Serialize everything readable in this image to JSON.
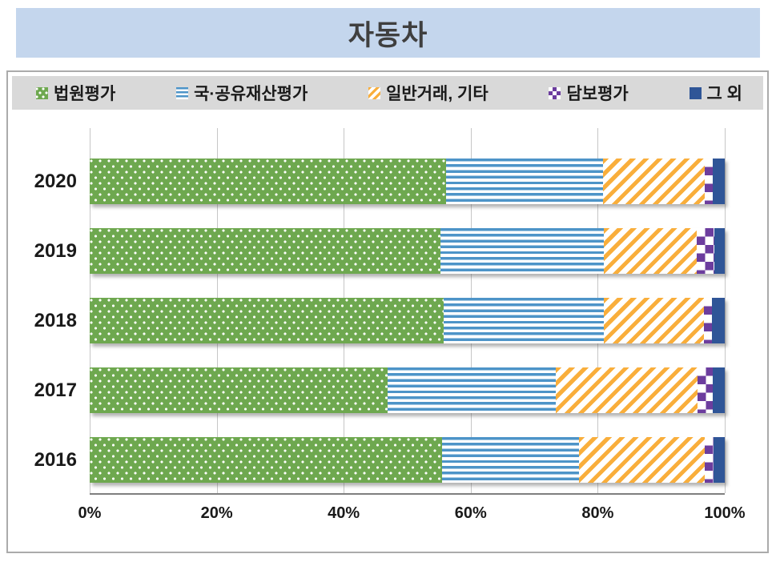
{
  "title": "자동차",
  "chart_data": {
    "type": "bar",
    "orientation": "horizontal",
    "stacked": true,
    "units": "percent",
    "categories": [
      "2020",
      "2019",
      "2018",
      "2017",
      "2016"
    ],
    "series": [
      {
        "name": "법원평가",
        "pattern": "green-dots",
        "color": "#6EA84F",
        "values": [
          56.1,
          55.2,
          55.7,
          46.9,
          55.5
        ]
      },
      {
        "name": "국·공유재산평가",
        "pattern": "blue-horizontal-stripes",
        "color": "#4D94C8",
        "values": [
          24.7,
          25.7,
          25.2,
          26.5,
          21.6
        ]
      },
      {
        "name": "일반거래, 기타",
        "pattern": "orange-diagonal-stripes",
        "color": "#F9AE3B",
        "values": [
          16.1,
          14.7,
          15.8,
          22.3,
          19.7
        ]
      },
      {
        "name": "담보평가",
        "pattern": "purple-checkerboard",
        "color": "#6C3D9E",
        "values": [
          1.2,
          2.7,
          1.3,
          2.4,
          1.4
        ]
      },
      {
        "name": "그 외",
        "pattern": "solid-navy",
        "color": "#2F5597",
        "values": [
          1.9,
          1.7,
          2.0,
          1.9,
          1.8
        ]
      }
    ],
    "x_axis": {
      "ticks": [
        "0%",
        "20%",
        "40%",
        "60%",
        "80%",
        "100%"
      ],
      "min": 0,
      "max": 100
    },
    "grid": true,
    "legend_position": "top"
  },
  "colors": {
    "title_banner_bg": "#C4D6ED",
    "title_text": "#3F3F3F",
    "legend_bg": "#D9D9D9",
    "frame_border": "#ABABAB",
    "gridline": "#C6C6C6",
    "axis_line": "#7F7F7F",
    "label_text": "#1A1A1A"
  }
}
